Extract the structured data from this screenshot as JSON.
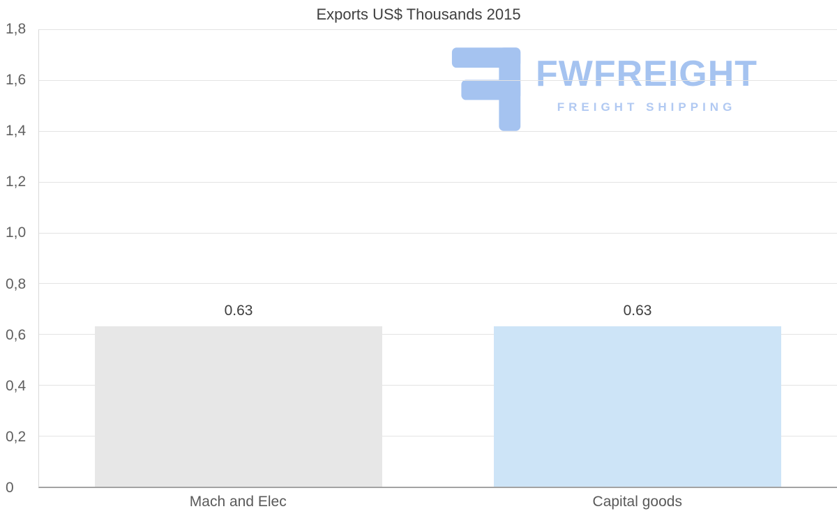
{
  "title": "Exports US$ Thousands 2015",
  "watermark": {
    "brand": "FWFREIGHT",
    "tagline": "FREIGHT SHIPPING",
    "brand_color": "#a5c3f0",
    "icon": "stylized-f-logo"
  },
  "chart_data": {
    "type": "bar",
    "title": "Exports US$ Thousands 2015",
    "categories": [
      "Mach and Elec",
      "Capital goods"
    ],
    "values": [
      0.63,
      0.63
    ],
    "value_labels": [
      "0.63",
      "0.63"
    ],
    "bar_colors": [
      "#e7e7e7",
      "#cde4f7"
    ],
    "xlabel": "",
    "ylabel": "",
    "ylim": [
      0,
      1.8
    ],
    "ytick_step": 0.2,
    "ytick_labels": [
      "0",
      "0,2",
      "0,4",
      "0,6",
      "0,8",
      "1,0",
      "1,2",
      "1,4",
      "1,6",
      "1,8"
    ],
    "grid": true,
    "legend_position": "none",
    "decimal_separator_axis": ",",
    "decimal_separator_labels": "."
  }
}
